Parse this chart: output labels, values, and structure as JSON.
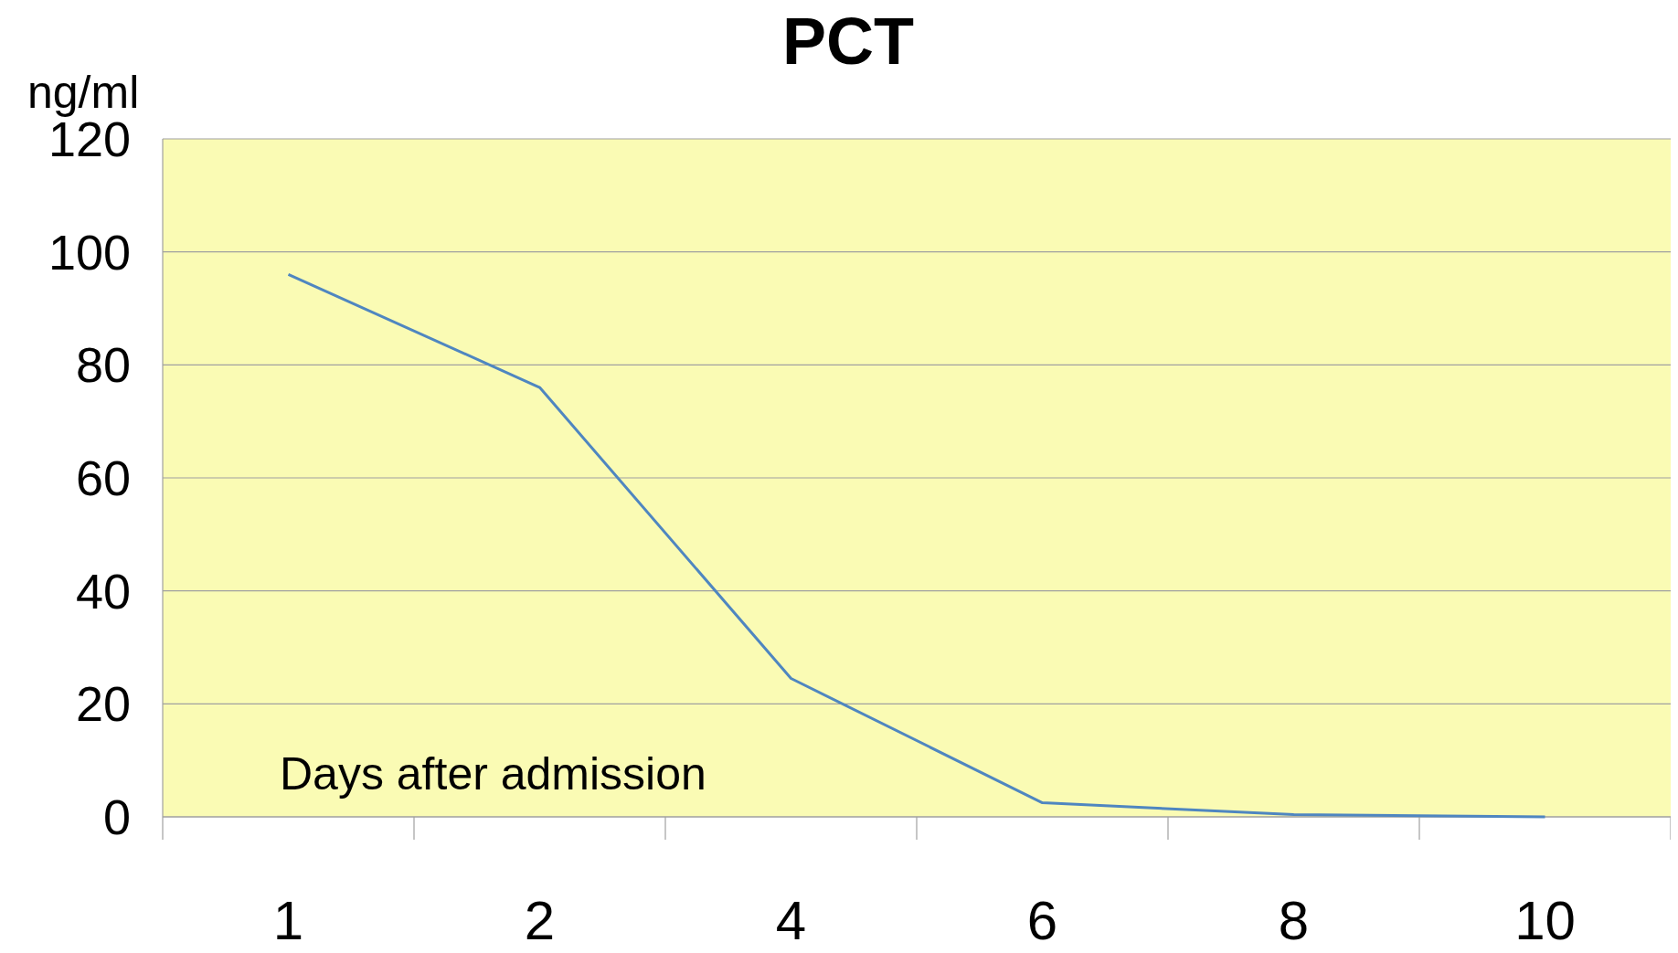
{
  "chart_data": {
    "type": "line",
    "title": "PCT",
    "ylabel": "ng/ml",
    "xlabel": "Days after admission",
    "categories": [
      "1",
      "2",
      "4",
      "6",
      "8",
      "10"
    ],
    "series": [
      {
        "color": "#4f86c0",
        "values": [
          96,
          76,
          24.5,
          2.5,
          0.4,
          0
        ]
      }
    ],
    "ylim": [
      0,
      120
    ],
    "yticks": [
      0,
      20,
      40,
      60,
      80,
      100,
      120
    ],
    "grid": "y",
    "marker": "none"
  }
}
